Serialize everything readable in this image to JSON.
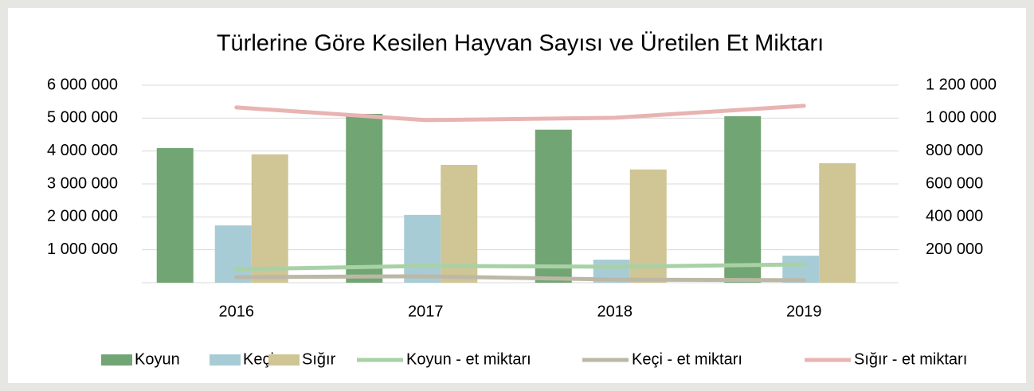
{
  "chart_data": {
    "type": "bar",
    "title": "Türlerine Göre Kesilen Hayvan Sayısı ve Üretilen Et Miktarı",
    "categories": [
      "2016",
      "2017",
      "2018",
      "2019"
    ],
    "series": [
      {
        "name": "Koyun",
        "color": "#72a574",
        "values": [
          4090000,
          5130000,
          4650000,
          5060000
        ]
      },
      {
        "name": "Keçi",
        "color": "#a8ccd6",
        "values": [
          1740000,
          2060000,
          700000,
          820000
        ]
      },
      {
        "name": "Sığır",
        "color": "#cfc595",
        "values": [
          3900000,
          3580000,
          3440000,
          3630000
        ]
      },
      {
        "name": "Koyun - et miktarı",
        "color": "#a9d1a6",
        "type": "line",
        "axis": "y2",
        "values": [
          82000,
          102000,
          97000,
          111000
        ]
      },
      {
        "name": "Keçi - et miktarı",
        "color": "#bdb8a6",
        "type": "line",
        "axis": "y2",
        "values": [
          34000,
          39000,
          19000,
          15000
        ]
      },
      {
        "name": "Sığır - et miktarı",
        "color": "#e8b4b2",
        "type": "line",
        "axis": "y2",
        "values": [
          1065000,
          988000,
          1002000,
          1075000
        ]
      }
    ],
    "ylim": [
      0,
      6000000
    ],
    "yticks": [
      {
        "value": 1000000,
        "label": "1 000 000"
      },
      {
        "value": 2000000,
        "label": "2 000 000"
      },
      {
        "value": 3000000,
        "label": "3 000 000"
      },
      {
        "value": 4000000,
        "label": "4 000 000"
      },
      {
        "value": 5000000,
        "label": "5 000 000"
      },
      {
        "value": 6000000,
        "label": "6 000 000"
      }
    ],
    "y2lim": [
      0,
      1200000
    ],
    "y2ticks": [
      {
        "value": 200000,
        "label": "200 000"
      },
      {
        "value": 400000,
        "label": "400 000"
      },
      {
        "value": 600000,
        "label": "600 000"
      },
      {
        "value": 800000,
        "label": "800 000"
      },
      {
        "value": 1000000,
        "label": "1 000 000"
      },
      {
        "value": 1200000,
        "label": "1 200 000"
      }
    ],
    "grid": true,
    "legend": "bottom"
  }
}
